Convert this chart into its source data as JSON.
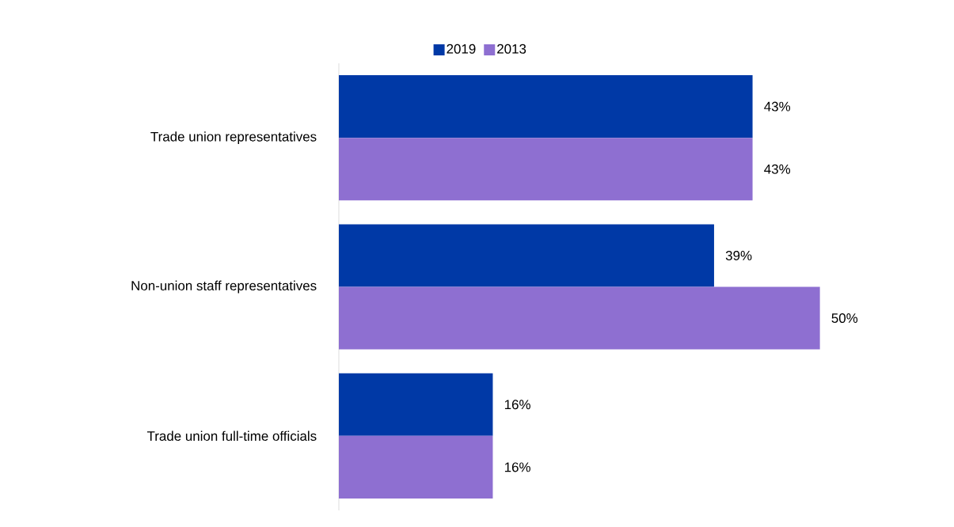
{
  "chart_data": {
    "type": "bar",
    "orientation": "horizontal",
    "legend": "top",
    "categories": [
      "Trade union representatives",
      "Non-union staff representatives",
      "Trade union full-time officials"
    ],
    "series": [
      {
        "name": "2019",
        "color": "#0039a6",
        "values": [
          43,
          39,
          16
        ],
        "value_labels": [
          "43%",
          "39%",
          "16%"
        ]
      },
      {
        "name": "2013",
        "color": "#8e6fd1",
        "values": [
          43,
          50,
          16
        ],
        "value_labels": [
          "43%",
          "50%",
          "16%"
        ]
      }
    ]
  }
}
